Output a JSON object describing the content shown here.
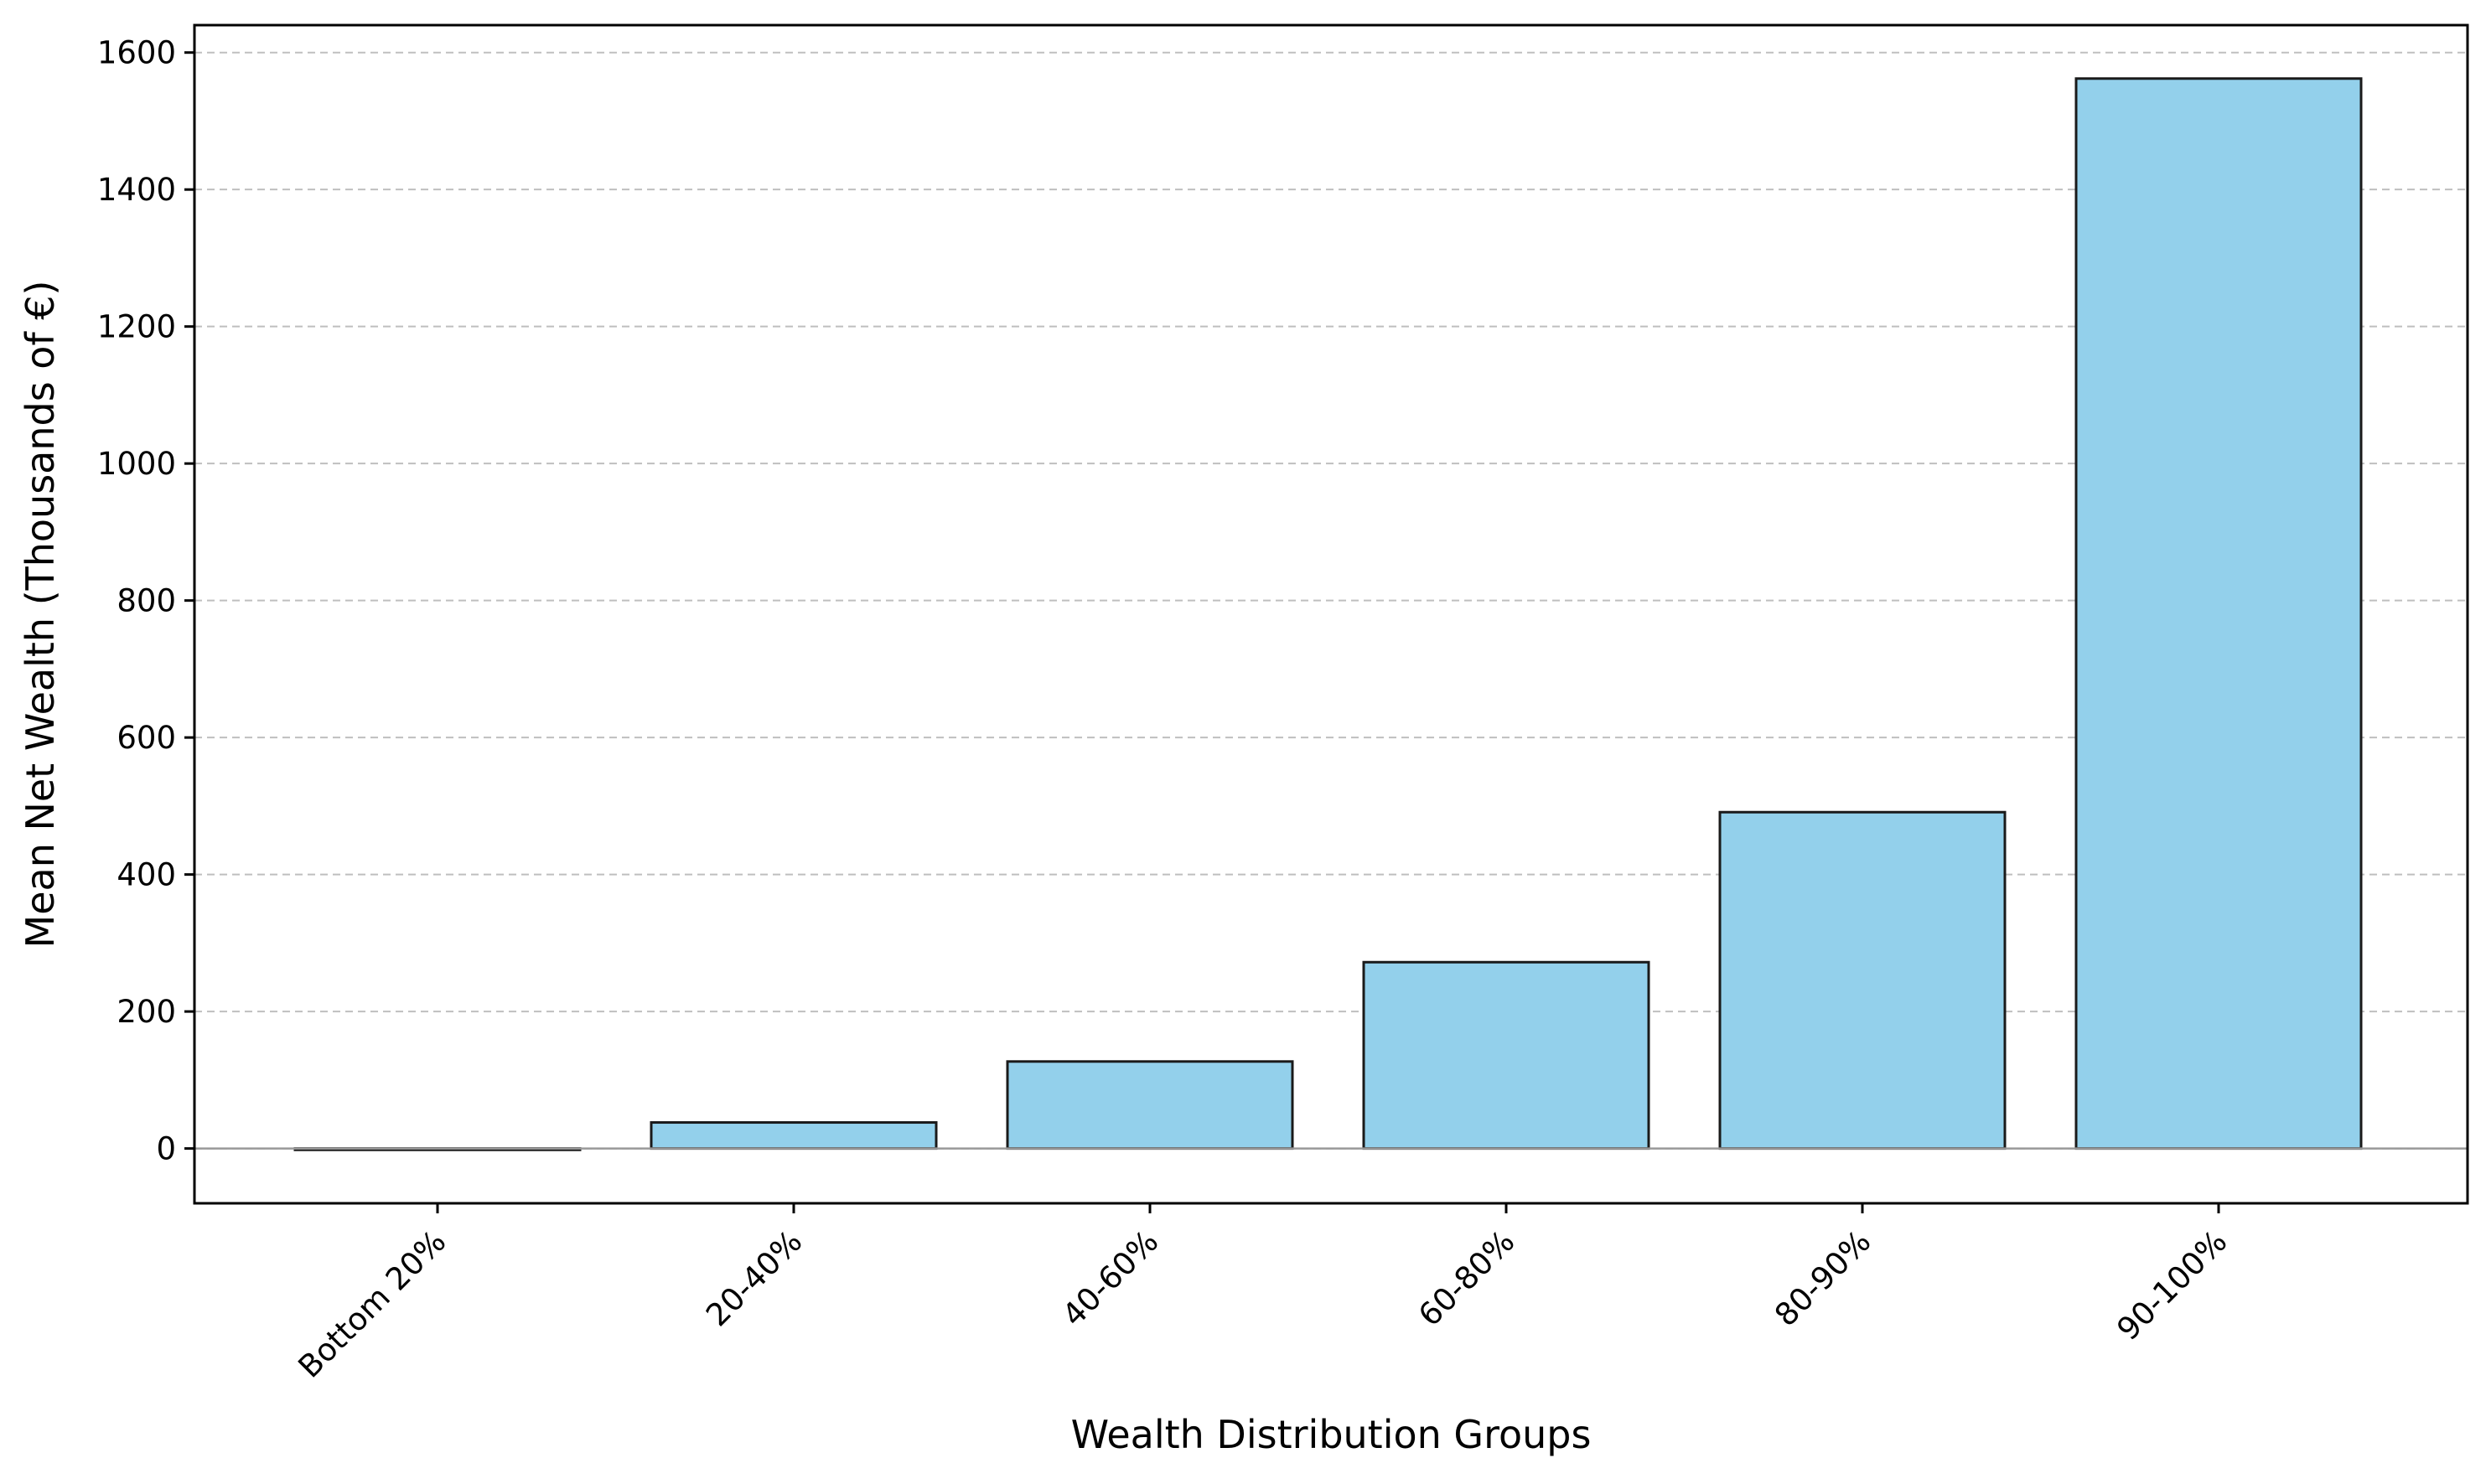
{
  "chart_data": {
    "type": "bar",
    "categories": [
      "Bottom 20%",
      "20-40%",
      "40-60%",
      "60-80%",
      "80-90%",
      "90-100%"
    ],
    "values": [
      -2,
      38,
      127,
      272,
      491,
      1562
    ],
    "title": "",
    "xlabel": "Wealth Distribution Groups",
    "ylabel": "Mean Net Wealth (Thousands of €)",
    "ylim": [
      -80,
      1640
    ],
    "yticks": [
      0,
      200,
      400,
      600,
      800,
      1000,
      1200,
      1400,
      1600
    ],
    "grid": "y-dashed",
    "zero_line": true,
    "colors": {
      "bar_fill": "#93d0eb",
      "bar_edge": "#1a1a1a",
      "grid": "#bfbfbf",
      "zero_line": "#999999"
    }
  }
}
